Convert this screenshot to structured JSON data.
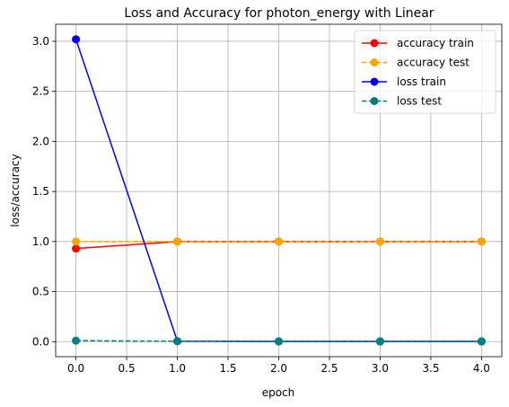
{
  "chart_data": {
    "type": "line",
    "title": "Loss and Accuracy for photon_energy with Linear",
    "xlabel": "epoch",
    "ylabel": "loss/accuracy",
    "x": [
      0,
      1,
      2,
      3,
      4
    ],
    "xlim": [
      -0.2,
      4.2
    ],
    "ylim": [
      -0.15,
      3.17
    ],
    "xticks": [
      "0.0",
      "0.5",
      "1.0",
      "1.5",
      "2.0",
      "2.5",
      "3.0",
      "3.5",
      "4.0"
    ],
    "yticks": [
      "0.0",
      "0.5",
      "1.0",
      "1.5",
      "2.0",
      "2.5",
      "3.0"
    ],
    "grid": true,
    "legend_position": "top-right",
    "series": [
      {
        "name": "accuracy train",
        "values": [
          0.93,
          1.0,
          1.0,
          1.0,
          1.0
        ],
        "color": "#ff0000",
        "dash": "solid"
      },
      {
        "name": "accuracy test",
        "values": [
          1.0,
          1.0,
          1.0,
          1.0,
          1.0
        ],
        "color": "#ffa500",
        "dash": "dashed"
      },
      {
        "name": "loss train",
        "values": [
          3.02,
          0.005,
          0.003,
          0.002,
          0.002
        ],
        "color": "#0000ff",
        "dash": "solid"
      },
      {
        "name": "loss test",
        "values": [
          0.01,
          0.004,
          0.002,
          0.002,
          0.002
        ],
        "color": "#008080",
        "dash": "dashed"
      }
    ]
  }
}
